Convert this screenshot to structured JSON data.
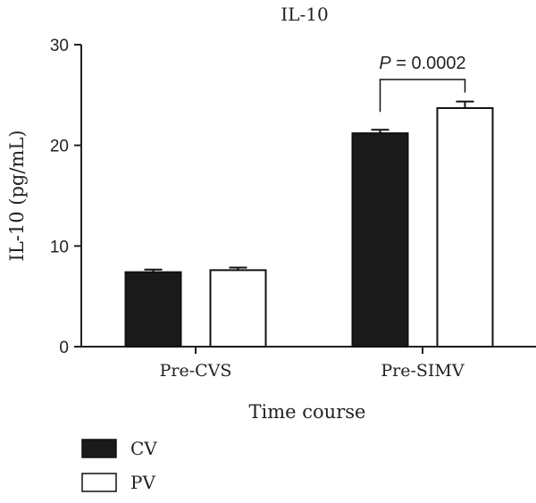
{
  "chart_data": {
    "type": "bar",
    "title": "IL-10",
    "xlabel": "Time course",
    "ylabel": "IL-10 (pg/mL)",
    "ylim": [
      0,
      30
    ],
    "yticks": [
      "0",
      "10",
      "20",
      "30"
    ],
    "categories": [
      "Pre-CVS",
      "Pre-SIMV"
    ],
    "series": [
      {
        "name": "CV",
        "values": [
          7.4,
          21.2
        ],
        "errors": [
          0.25,
          0.35
        ],
        "color": "#1a1a1a"
      },
      {
        "name": "PV",
        "values": [
          7.6,
          23.7
        ],
        "errors": [
          0.25,
          0.65
        ],
        "color": "#ffffff"
      }
    ],
    "annotation": {
      "category": "Pre-SIMV",
      "p_symbol": "P",
      "p_value_text": " = 0.0002"
    },
    "legend_position": "bottom-left",
    "grid": false
  }
}
